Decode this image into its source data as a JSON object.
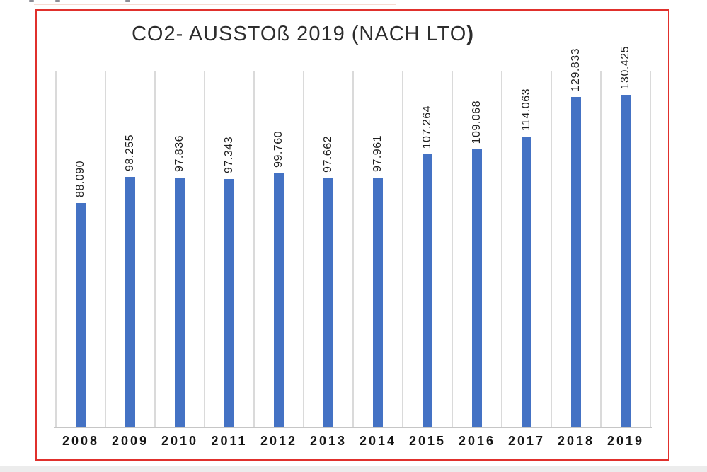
{
  "chart_data": {
    "type": "bar",
    "title": "CO2- AUSSTOß 2019 (NACH LTO)",
    "title_main": "CO2- AUSSTOß 2019 (NACH LTO",
    "title_suffix": ")",
    "categories": [
      "2008",
      "2009",
      "2010",
      "2011",
      "2012",
      "2013",
      "2014",
      "2015",
      "2016",
      "2017",
      "2018",
      "2019"
    ],
    "values": [
      88090,
      98255,
      97836,
      97343,
      99760,
      97662,
      97961,
      107264,
      109068,
      114063,
      129833,
      130425
    ],
    "value_labels": [
      "88.090",
      "98.255",
      "97.836",
      "97.343",
      "99.760",
      "97.662",
      "97.961",
      "107.264",
      "109.068",
      "114.063",
      "129.833",
      "130.425"
    ],
    "xlabel": "",
    "ylabel": "",
    "ylim": [
      0,
      140000
    ],
    "grid": "vertical-category-gridlines",
    "legend": "none",
    "bar_color": "#4472C4",
    "gridline_color": "#dadada",
    "axis_color": "#c6c6c6",
    "frame_border_color": "#e0302c",
    "label_color": "#1f1f1f"
  }
}
